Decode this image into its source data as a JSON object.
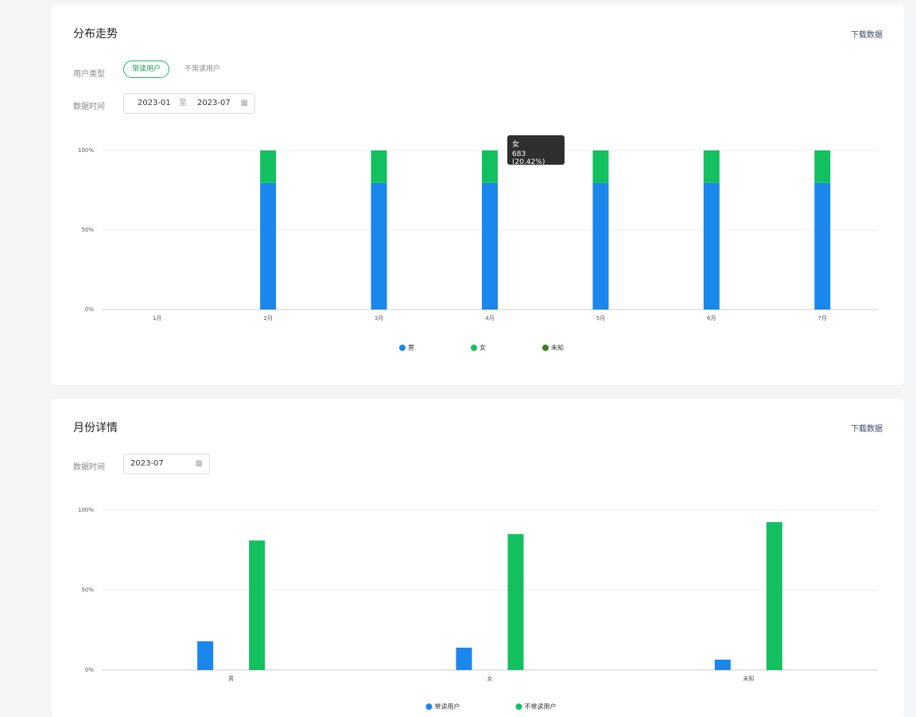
{
  "panels": [
    {
      "title": "分布走势",
      "download": "下载数据",
      "user_type_label": "用户类型",
      "user_types": [
        "常读用户",
        "不常读用户"
      ],
      "date_label": "数据时间",
      "date_start": "2023-01",
      "date_sep": "至",
      "date_end": "2023-07",
      "tooltip": {
        "title": "女",
        "text": "683 (20.42%)"
      },
      "chart_data": {
        "type": "stacked-bar",
        "categories": [
          "1月",
          "2月",
          "3月",
          "4月",
          "5月",
          "6月",
          "7月"
        ],
        "series": [
          {
            "name": "男",
            "color": "#1a87ec",
            "values": [
              null,
              79.58,
              79.58,
              79.58,
              79.58,
              79.58,
              79.58
            ]
          },
          {
            "name": "女",
            "color": "#13c060",
            "values": [
              null,
              20.42,
              20.42,
              20.42,
              20.42,
              20.42,
              20.42
            ]
          },
          {
            "name": "未知",
            "color": "#3f7f1a",
            "values": [
              null,
              0,
              0,
              0,
              0,
              0,
              0
            ]
          }
        ],
        "ylim": [
          0,
          100
        ],
        "yticks": [
          {
            "value": 0,
            "label": "0%"
          },
          {
            "value": 50,
            "label": "50%"
          },
          {
            "value": 100,
            "label": "100%"
          }
        ],
        "grid": true
      }
    },
    {
      "title": "月份详情",
      "download": "下载数据",
      "date_label": "数据时间",
      "date": "2023-07",
      "chart_data": {
        "type": "grouped-bar",
        "categories": [
          "男",
          "女",
          "未知"
        ],
        "series": [
          {
            "name": "常读用户",
            "color": "#1a87ec",
            "values": [
              18,
              14,
              6.5
            ]
          },
          {
            "name": "不常读用户",
            "color": "#13c060",
            "values": [
              81,
              85,
              92.5
            ]
          }
        ],
        "ylim": [
          0,
          100
        ],
        "yticks": [
          {
            "value": 0,
            "label": "0%"
          },
          {
            "value": 50,
            "label": "50%"
          },
          {
            "value": 100,
            "label": "100%"
          }
        ],
        "grid": true
      }
    }
  ]
}
